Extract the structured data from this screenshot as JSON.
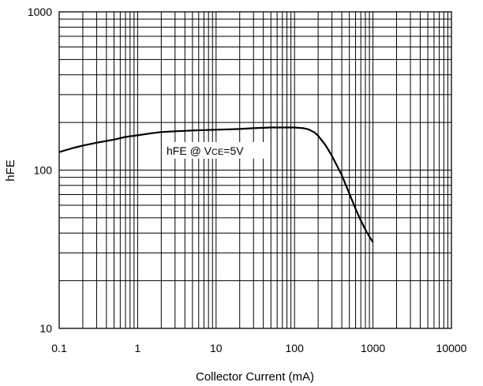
{
  "chart_data": {
    "type": "line",
    "title": "",
    "xlabel": "Collector Current (mA)",
    "ylabel": "hFE",
    "xscale": "log",
    "yscale": "log",
    "xlim": [
      0.1,
      10000
    ],
    "ylim": [
      10,
      1000
    ],
    "x_ticks": [
      0.1,
      1,
      10,
      100,
      1000,
      10000
    ],
    "x_tick_labels": [
      "0.1",
      "1",
      "10",
      "100",
      "1000",
      "10000"
    ],
    "y_ticks": [
      10,
      100,
      1000
    ],
    "y_tick_labels": [
      "10",
      "100",
      "1000"
    ],
    "grid": true,
    "legend": "none",
    "annotations": [
      {
        "text_main": "hFE @ V",
        "text_sub": "CE",
        "text_end": "=5V"
      }
    ],
    "series": [
      {
        "x": [
          0.1,
          0.15,
          0.2,
          0.3,
          0.5,
          0.7,
          1,
          1.5,
          2,
          3,
          5,
          7,
          10,
          15,
          20,
          30,
          50,
          70,
          100,
          130,
          150,
          180,
          200,
          250,
          300,
          400,
          500,
          600,
          700,
          800,
          900,
          1000
        ],
        "y": [
          130,
          138,
          143,
          149,
          156,
          162,
          166,
          171,
          174,
          176,
          178,
          179,
          180,
          181,
          182,
          184,
          186,
          186,
          186,
          184,
          181,
          173,
          165,
          143,
          123,
          93,
          71,
          57,
          48,
          42,
          38,
          35
        ]
      }
    ]
  }
}
